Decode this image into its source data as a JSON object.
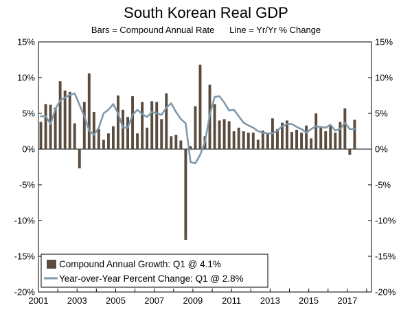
{
  "chart_data": {
    "type": "bar+line",
    "title": "South Korean Real GDP",
    "subtitle": "Bars = Compound Annual Rate      Line = Yr/Yr % Change",
    "xlabel": "",
    "ylabel": "",
    "ylim": [
      -20,
      15
    ],
    "y_ticks": [
      15,
      10,
      5,
      0,
      -5,
      -10,
      -15,
      -20
    ],
    "y_tick_labels": [
      "15%",
      "10%",
      "5%",
      "0%",
      "-5%",
      "-10%",
      "-15%",
      "-20%"
    ],
    "x_tick_labels": [
      "2001",
      "2003",
      "2005",
      "2007",
      "2009",
      "2011",
      "2013",
      "2015",
      "2017"
    ],
    "x_tick_years": [
      2001,
      2003,
      2005,
      2007,
      2009,
      2011,
      2013,
      2015,
      2017
    ],
    "x_range": [
      2001.0,
      2018.25
    ],
    "legend_position": "bottom-left",
    "series": [
      {
        "name": "Compound Annual Growth: Q1 @ 4.1%",
        "kind": "bar",
        "color": "#5a4d40",
        "start_year": 2001,
        "start_quarter": 1,
        "values": [
          3.8,
          6.3,
          6.2,
          5.8,
          9.5,
          8.2,
          8.0,
          3.6,
          -2.7,
          6.6,
          10.6,
          5.2,
          2.8,
          1.3,
          2.2,
          3.2,
          7.5,
          5.5,
          4.5,
          7.4,
          2.2,
          6.6,
          3.0,
          6.7,
          6.6,
          4.2,
          7.8,
          1.8,
          2.0,
          1.2,
          -12.7,
          0.4,
          6.0,
          11.8,
          1.8,
          9.0,
          6.3,
          4.0,
          4.2,
          3.9,
          2.5,
          3.0,
          2.5,
          2.3,
          2.3,
          1.3,
          2.6,
          2.3,
          4.3,
          2.8,
          3.7,
          4.0,
          2.4,
          2.7,
          2.3,
          3.3,
          1.5,
          5.0,
          3.2,
          2.5,
          3.4,
          2.3,
          3.8,
          5.7,
          -0.8,
          4.1
        ]
      },
      {
        "name": "Year-over-Year Percent Change: Q1 @ 2.8%",
        "kind": "line",
        "color": "#7f98ab",
        "start_year": 2001,
        "start_quarter": 1,
        "values": [
          4.6,
          4.6,
          3.5,
          5.6,
          6.8,
          7.2,
          7.6,
          7.8,
          6.2,
          4.6,
          2.6,
          2.0,
          3.0,
          5.0,
          5.5,
          6.3,
          5.0,
          3.0,
          3.0,
          4.8,
          5.5,
          4.9,
          4.5,
          5.2,
          5.0,
          4.8,
          5.8,
          6.4,
          5.2,
          4.2,
          3.6,
          -1.8,
          -2.0,
          -0.8,
          1.0,
          4.8,
          7.3,
          7.4,
          6.5,
          5.4,
          5.5,
          4.6,
          3.7,
          3.3,
          3.0,
          2.5,
          2.3,
          2.2,
          2.2,
          2.6,
          3.2,
          3.5,
          3.5,
          3.1,
          2.8,
          2.3,
          2.8,
          3.2,
          3.1,
          3.0,
          3.4,
          2.6,
          2.8,
          3.7,
          2.8,
          2.8
        ]
      }
    ]
  }
}
